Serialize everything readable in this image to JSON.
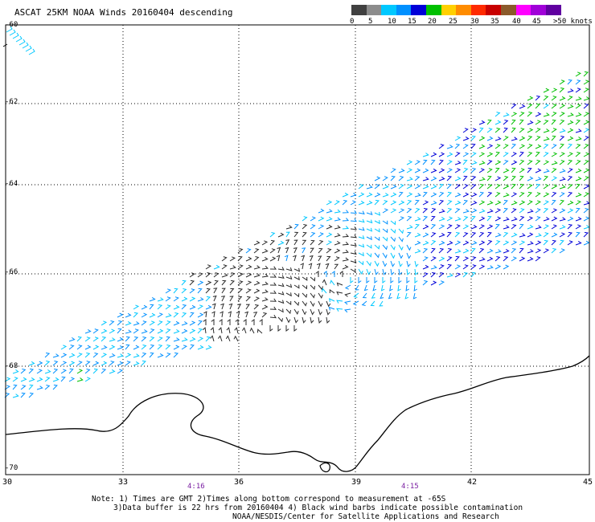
{
  "title": "ASCAT 25KM NOAA Winds 20160404 descending",
  "colorbar": {
    "segments": [
      {
        "color": "#404040"
      },
      {
        "color": "#8c8c8c"
      },
      {
        "color": "#00c8ff"
      },
      {
        "color": "#0090ff"
      },
      {
        "color": "#0000d8"
      },
      {
        "color": "#00c000"
      },
      {
        "color": "#ffd000"
      },
      {
        "color": "#ff8c00"
      },
      {
        "color": "#ff2a00"
      },
      {
        "color": "#c80000"
      },
      {
        "color": "#8b5a2b"
      },
      {
        "color": "#ff00ff"
      },
      {
        "color": "#a000d8"
      },
      {
        "color": "#6000a0"
      }
    ],
    "labels": [
      "0",
      "5",
      "10",
      "15",
      "20",
      "25",
      "30",
      "35",
      "40",
      "45",
      ">50 knots"
    ]
  },
  "axes": {
    "y_labels": [
      "-60",
      "-62",
      "-64",
      "-66",
      "-68",
      "-70"
    ],
    "x_labels": [
      "30",
      "33",
      "36",
      "39",
      "42",
      "45"
    ],
    "time_marks": [
      "4:16",
      "4:15"
    ]
  },
  "notes": [
    "Note: 1) Times are GMT 2)Times along bottom correspond to measurement at -65S",
    "3)Data buffer is 22 hrs from 20160404 4) Black wind barbs indicate possible contamination",
    "NOAA/NESDIS/Center for Satellite Applications and Research"
  ]
}
